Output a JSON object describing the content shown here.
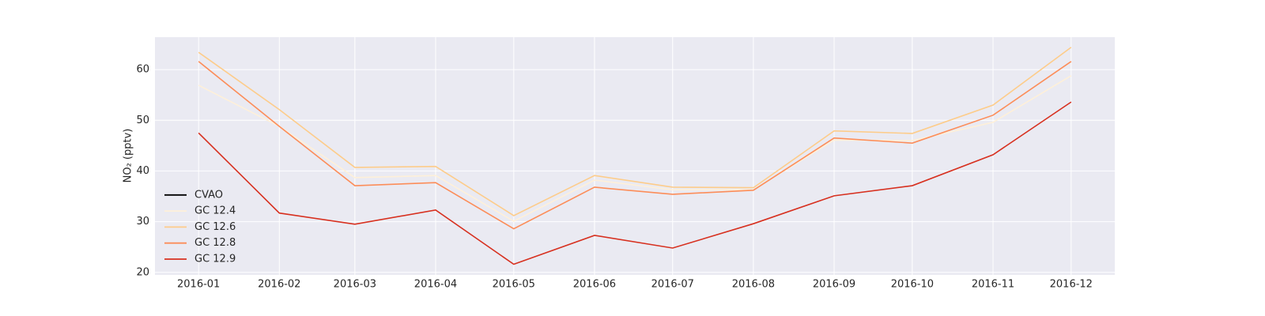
{
  "chart_data": {
    "type": "line",
    "y_label": "NO₂ (pptv)",
    "x": [
      "2016-01",
      "2016-02",
      "2016-03",
      "2016-04",
      "2016-05",
      "2016-06",
      "2016-07",
      "2016-08",
      "2016-09",
      "2016-10",
      "2016-11",
      "2016-12"
    ],
    "series": [
      {
        "name": "CVAO",
        "color": "#000000",
        "values": [
          null,
          null,
          null,
          null,
          null,
          null,
          null,
          null,
          null,
          null,
          null,
          null
        ]
      },
      {
        "name": "GC 12.4",
        "color": "#fef0d9",
        "values": [
          56.9,
          48.8,
          38.7,
          39.1,
          30.1,
          38.2,
          36.3,
          36.3,
          46.1,
          46.0,
          49.6,
          58.8
        ]
      },
      {
        "name": "GC 12.6",
        "color": "#fdcc8a",
        "values": [
          63.4,
          52.1,
          40.7,
          40.9,
          31.2,
          39.1,
          36.8,
          36.7,
          47.9,
          47.4,
          53.0,
          64.4
        ]
      },
      {
        "name": "GC 12.8",
        "color": "#fc8d59",
        "values": [
          61.6,
          48.8,
          37.1,
          37.7,
          28.6,
          36.8,
          35.4,
          36.2,
          46.5,
          45.5,
          51.0,
          61.6
        ]
      },
      {
        "name": "GC 12.9",
        "color": "#d7301f",
        "values": [
          47.5,
          31.7,
          29.5,
          32.3,
          21.6,
          27.3,
          24.8,
          29.6,
          35.1,
          37.1,
          43.2,
          53.6
        ]
      }
    ],
    "ylim": [
      19.5,
      66.4
    ],
    "yticks": [
      20,
      30,
      40,
      50,
      60
    ],
    "grid": true,
    "legend": "lower left"
  }
}
